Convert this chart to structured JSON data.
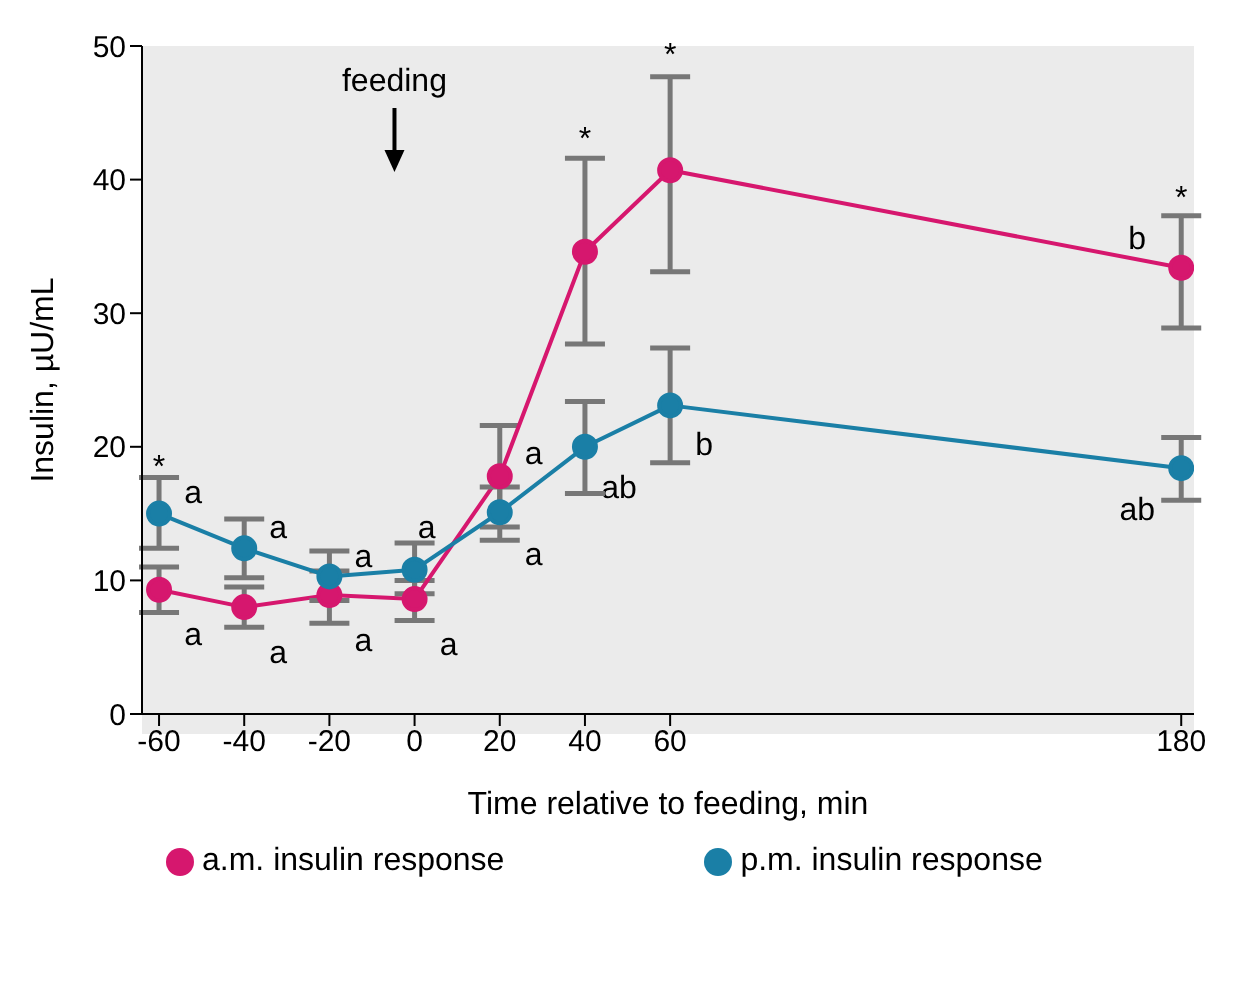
{
  "chart_data": {
    "type": "line",
    "xlabel": "Time relative to feeding, min",
    "ylabel": "Insulin, µU/mL",
    "x": [
      -60,
      -40,
      -20,
      0,
      20,
      40,
      60,
      180
    ],
    "series": [
      {
        "name": "a.m. insulin response",
        "color": "#d6176e",
        "values": [
          9.3,
          8.0,
          8.9,
          8.6,
          17.8,
          34.6,
          40.7,
          33.4
        ],
        "errors": [
          [
            7.6,
            11
          ],
          [
            6.5,
            9.5
          ],
          [
            6.8,
            10.7
          ],
          [
            7,
            10
          ],
          [
            14,
            21.6
          ],
          [
            27.7,
            41.6
          ],
          [
            33.1,
            47.7
          ],
          [
            28.9,
            37.3
          ]
        ]
      },
      {
        "name": "p.m. insulin response",
        "color": "#1a7fa6",
        "values": [
          15.0,
          12.4,
          10.3,
          10.8,
          15.1,
          20.0,
          23.1,
          18.4
        ],
        "errors": [
          [
            12.4,
            17.7
          ],
          [
            10.2,
            14.6
          ],
          [
            8.5,
            12.2
          ],
          [
            9,
            12.8
          ],
          [
            13,
            17
          ],
          [
            16.5,
            23.4
          ],
          [
            18.8,
            27.4
          ],
          [
            16,
            20.7
          ]
        ]
      }
    ],
    "xlim": [
      -64,
      183
    ],
    "xticks": [
      -60,
      -40,
      -20,
      0,
      20,
      40,
      60,
      180
    ],
    "ylim": [
      0,
      50
    ],
    "yticks": [
      0,
      10,
      20,
      30,
      40,
      50
    ],
    "grid": false,
    "legend": "bottom",
    "marker": "circle",
    "line_style": "solid",
    "annotations": [
      "feeding",
      {
        "text": "*",
        "x": -60,
        "y": 17.7
      },
      {
        "text": "*",
        "x": 40,
        "y": 41.6
      },
      {
        "text": "*",
        "x": 60,
        "y": 47.7
      },
      {
        "text": "*",
        "x": 180,
        "y": 37.3
      },
      {
        "text": "a",
        "x": -60,
        "y": 15.0
      },
      {
        "text": "a",
        "x": -60,
        "y": 9.3
      },
      {
        "text": "a",
        "x": -40,
        "y": 12.4
      },
      {
        "text": "a",
        "x": -40,
        "y": 8.0
      },
      {
        "text": "a",
        "x": -20,
        "y": 10.3
      },
      {
        "text": "a",
        "x": -20,
        "y": 8.9
      },
      {
        "text": "a",
        "x": 0,
        "y": 10.8
      },
      {
        "text": "a",
        "x": 0,
        "y": 8.6
      },
      {
        "text": "a",
        "x": 20,
        "y": 17.8
      },
      {
        "text": "a",
        "x": 20,
        "y": 15.1
      },
      {
        "text": "ab",
        "x": 40,
        "y": 20.0
      },
      {
        "text": "b",
        "x": 60,
        "y": 23.1
      },
      {
        "text": "b",
        "x": 180,
        "y": 33.4
      },
      {
        "text": "ab",
        "x": 180,
        "y": 18.4
      }
    ]
  }
}
